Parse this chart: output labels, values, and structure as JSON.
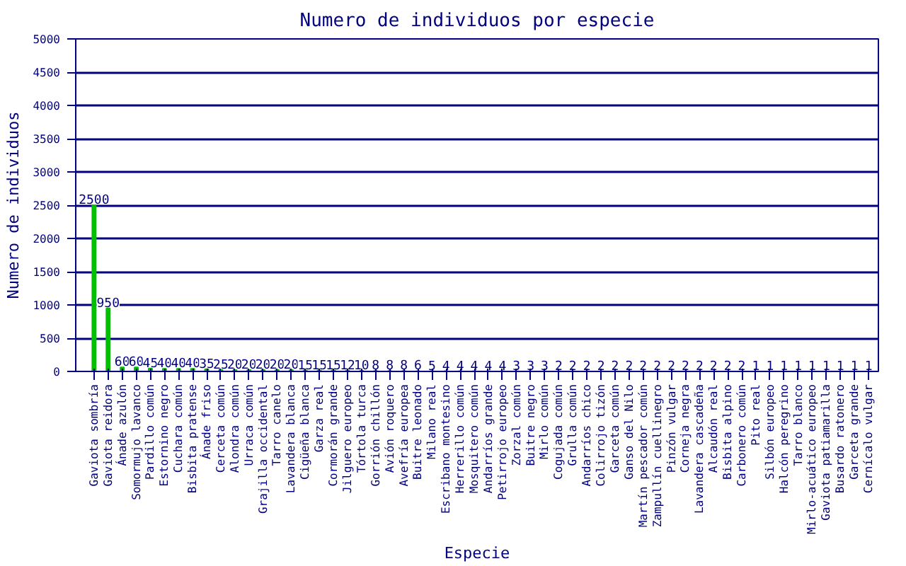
{
  "chart_data": {
    "type": "bar",
    "title": "Numero de individuos por especie",
    "xlabel": "Especie",
    "ylabel": "Numero de individuos",
    "categories": [
      "Gaviota sombría",
      "Gaviota reidora",
      "Ánade azulón",
      "Somormujo lavanco",
      "Pardillo común",
      "Estornino negro",
      "Cuchara común",
      "Bisbita pratense",
      "Ánade friso",
      "Cerceta común",
      "Alondra común",
      "Urraca común",
      "Grajilla occidental",
      "Tarro canelo",
      "Lavandera blanca",
      "Cigüeña blanca",
      "Garza real",
      "Cormorán grande",
      "Jilguero europeo",
      "Tórtola turca",
      "Gorrión chillón",
      "Avión roquero",
      "Avefría europea",
      "Buitre leonado",
      "Milano real",
      "Escribano montesino",
      "Herrerillo común",
      "Mosquitero común",
      "Andarríos grande",
      "Petirrojo europeo",
      "Zorzal común",
      "Buitre negro",
      "Mirlo común",
      "Cogujada común",
      "Grulla común",
      "Andarríos chico",
      "Colirrojo tizón",
      "Garceta común",
      "Ganso del Nilo",
      "Martín pescador común",
      "Zampullín cuellinegro",
      "Pinzón vulgar",
      "Corneja negra",
      "Lavandera cascadeña",
      "Alcaudón real",
      "Bisbita alpino",
      "Carbonero común",
      "Pito real",
      "Silbón europeo",
      "Halcón peregrino",
      "Tarro blanco",
      "Mirlo-acuático europeo",
      "Gaviota patiamarilla",
      "Busardo ratonero",
      "Garceta grande",
      "Cernícalo vulgar"
    ],
    "values": [
      2500,
      950,
      60,
      60,
      45,
      40,
      40,
      40,
      35,
      25,
      20,
      20,
      20,
      20,
      20,
      15,
      15,
      15,
      12,
      10,
      8,
      8,
      8,
      6,
      5,
      4,
      4,
      4,
      4,
      4,
      3,
      3,
      3,
      2,
      2,
      2,
      2,
      2,
      2,
      2,
      2,
      2,
      2,
      2,
      2,
      2,
      2,
      1,
      1,
      1,
      1,
      1,
      1,
      1,
      1,
      1
    ],
    "color": "#00c000",
    "ylim": [
      0,
      5000
    ],
    "yticks": [
      0,
      500,
      1000,
      1500,
      2000,
      2500,
      3000,
      3500,
      4000,
      4500,
      5000
    ],
    "grid": "y",
    "data_labels": true
  }
}
